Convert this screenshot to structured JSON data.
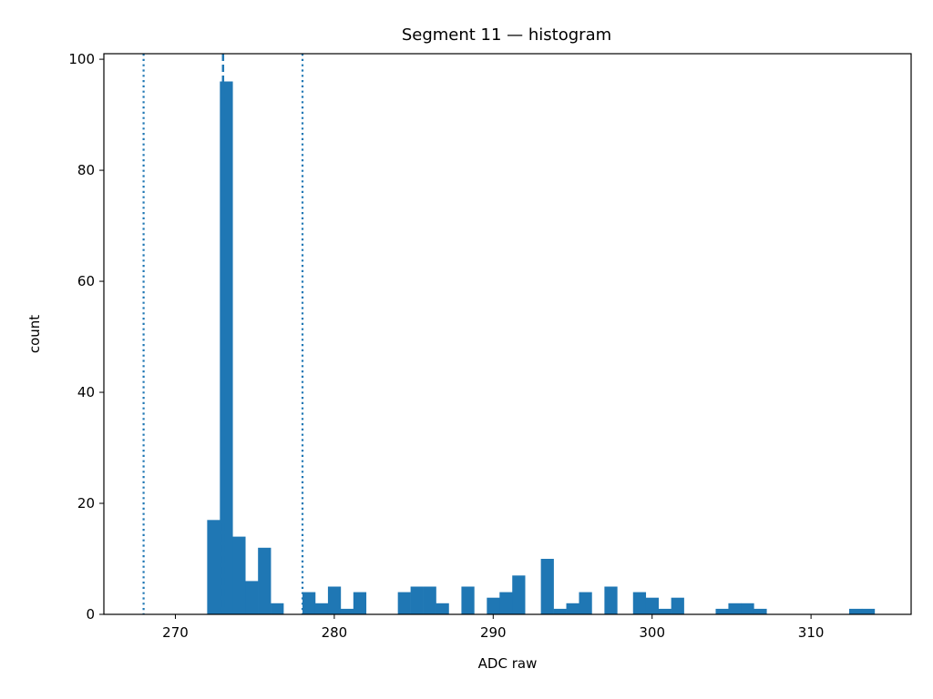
{
  "chart_data": {
    "type": "bar",
    "title": "Segment 11 — histogram",
    "xlabel": "ADC raw",
    "ylabel": "count",
    "xlim": [
      265.5,
      316.3
    ],
    "ylim": [
      0,
      101
    ],
    "xticks": [
      270,
      280,
      290,
      300,
      310
    ],
    "yticks": [
      0,
      20,
      40,
      60,
      80,
      100
    ],
    "bin_width": 0.8,
    "bar_color": "#1f77b4",
    "grid": false,
    "bins": [
      {
        "x": 272.0,
        "count": 17
      },
      {
        "x": 272.8,
        "count": 96
      },
      {
        "x": 273.6,
        "count": 14
      },
      {
        "x": 274.4,
        "count": 6
      },
      {
        "x": 275.2,
        "count": 12
      },
      {
        "x": 276.0,
        "count": 2
      },
      {
        "x": 278.0,
        "count": 4
      },
      {
        "x": 278.8,
        "count": 2
      },
      {
        "x": 279.6,
        "count": 5
      },
      {
        "x": 280.4,
        "count": 1
      },
      {
        "x": 281.2,
        "count": 4
      },
      {
        "x": 284.0,
        "count": 4
      },
      {
        "x": 284.8,
        "count": 5
      },
      {
        "x": 285.6,
        "count": 5
      },
      {
        "x": 286.4,
        "count": 2
      },
      {
        "x": 288.0,
        "count": 5
      },
      {
        "x": 289.6,
        "count": 3
      },
      {
        "x": 290.4,
        "count": 4
      },
      {
        "x": 291.2,
        "count": 7
      },
      {
        "x": 293.0,
        "count": 10
      },
      {
        "x": 293.8,
        "count": 1
      },
      {
        "x": 294.6,
        "count": 2
      },
      {
        "x": 295.4,
        "count": 4
      },
      {
        "x": 297.0,
        "count": 5
      },
      {
        "x": 298.8,
        "count": 4
      },
      {
        "x": 299.6,
        "count": 3
      },
      {
        "x": 300.4,
        "count": 1
      },
      {
        "x": 301.2,
        "count": 3
      },
      {
        "x": 304.0,
        "count": 1
      },
      {
        "x": 304.8,
        "count": 2
      },
      {
        "x": 305.6,
        "count": 2
      },
      {
        "x": 306.4,
        "count": 1
      },
      {
        "x": 312.4,
        "count": 1
      },
      {
        "x": 313.2,
        "count": 1
      }
    ],
    "reference_lines": [
      {
        "x": 268,
        "style": "dotted"
      },
      {
        "x": 273,
        "style": "dashed"
      },
      {
        "x": 278,
        "style": "dotted"
      }
    ]
  }
}
